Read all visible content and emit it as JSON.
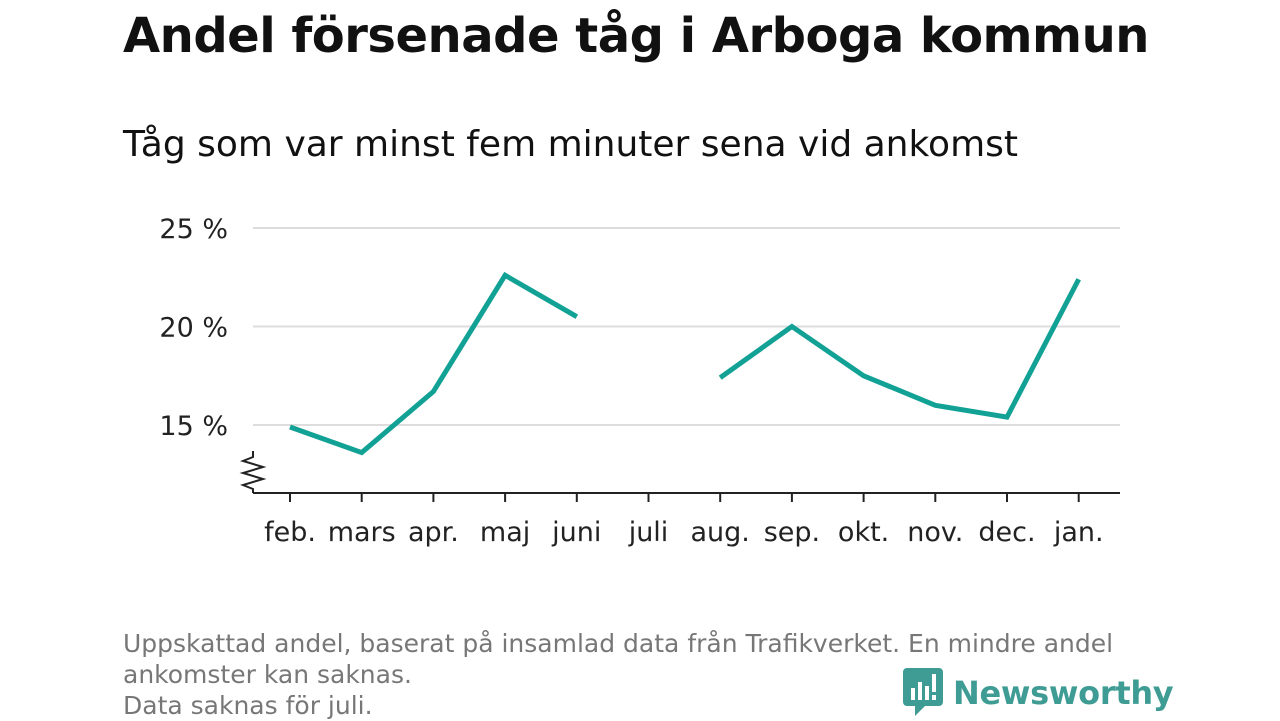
{
  "chart_data": {
    "type": "line",
    "title": "Andel försenade tåg i Arboga kommun",
    "subtitle": "Tåg som var minst fem minuter sena vid ankomst",
    "categories": [
      "feb.",
      "mars",
      "apr.",
      "maj",
      "juni",
      "juli",
      "aug.",
      "sep.",
      "okt.",
      "nov.",
      "dec.",
      "jan."
    ],
    "series": [
      {
        "values": [
          14.9,
          13.6,
          16.7,
          22.6,
          20.5,
          null,
          17.4,
          20.0,
          17.5,
          16.0,
          15.4,
          22.4
        ]
      }
    ],
    "yticks": [
      {
        "value": 15,
        "label": "15 %"
      },
      {
        "value": 20,
        "label": "20 %"
      },
      {
        "value": 25,
        "label": "25 %"
      }
    ],
    "ylim": [
      12.5,
      25
    ],
    "y_axis_break": true,
    "grid": true,
    "line_color": "#12a195"
  },
  "footnote": [
    "Uppskattad andel, baserat på insamlad data från Trafikverket. En mindre andel",
    "ankomster kan saknas.",
    "Data saknas för juli."
  ],
  "brand": {
    "name": "Newsworthy",
    "icon": "bar-chart-speech-bubble-icon",
    "color": "#3f9c94"
  }
}
